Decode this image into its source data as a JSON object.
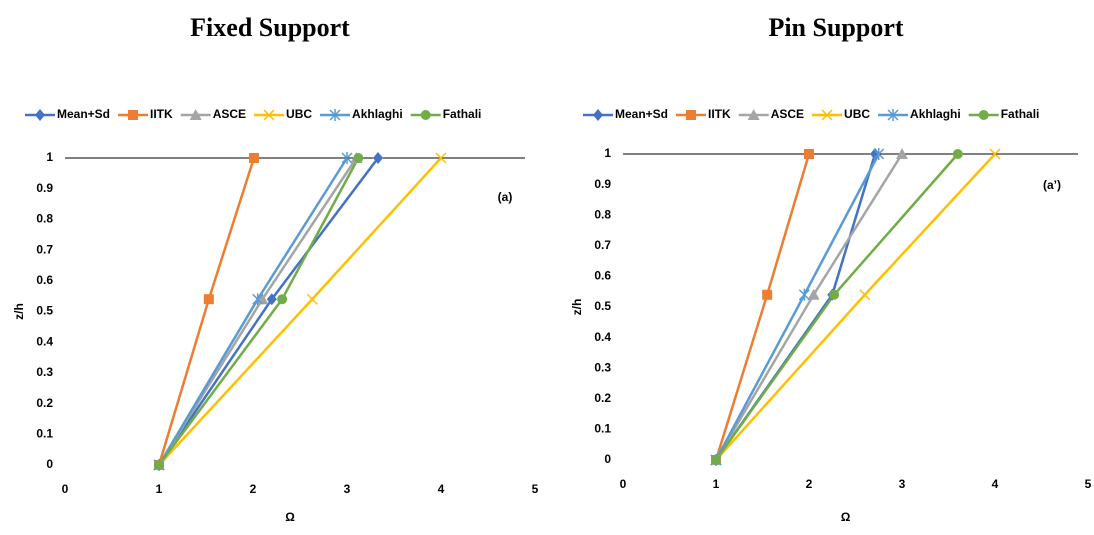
{
  "chart_data": [
    {
      "type": "line",
      "title": "Fixed Support",
      "annotation": "(a)",
      "x_label": "Ω",
      "y_label": "z/h",
      "xlim": [
        0,
        5
      ],
      "xticks": [
        0,
        1,
        2,
        3,
        4,
        5
      ],
      "ylim": [
        0,
        1
      ],
      "yticks": [
        0,
        0.1,
        0.2,
        0.3,
        0.4,
        0.5,
        0.6,
        0.7,
        0.8,
        0.9,
        1
      ],
      "legend": "top",
      "grid": false,
      "series": [
        {
          "name": "Mean+Sd",
          "color": "#4472c4",
          "marker": "diamond",
          "x": [
            1,
            2.2,
            3.33
          ],
          "values": [
            0,
            0.54,
            1
          ]
        },
        {
          "name": "IITK",
          "color": "#ed7d31",
          "marker": "square",
          "x": [
            1,
            1.53,
            2.01
          ],
          "values": [
            0,
            0.54,
            1
          ]
        },
        {
          "name": "ASCE",
          "color": "#a5a5a5",
          "marker": "triangle",
          "x": [
            1,
            2.1,
            3.1
          ],
          "values": [
            0,
            0.54,
            1
          ]
        },
        {
          "name": "UBC",
          "color": "#ffc000",
          "marker": "x",
          "x": [
            1,
            2.63,
            4.0
          ],
          "values": [
            0,
            0.54,
            1
          ]
        },
        {
          "name": "Akhlaghi",
          "color": "#5b9bd5",
          "marker": "asterisk",
          "x": [
            1,
            2.05,
            3.0
          ],
          "values": [
            0,
            0.54,
            1
          ]
        },
        {
          "name": "Fathali",
          "color": "#70ad47",
          "marker": "circle",
          "x": [
            1,
            2.31,
            3.12
          ],
          "values": [
            0,
            0.54,
            1
          ]
        }
      ]
    },
    {
      "type": "line",
      "title": "Pin Support",
      "annotation": "(a’)",
      "x_label": "Ω",
      "y_label": "z/h",
      "xlim": [
        0,
        5
      ],
      "xticks": [
        0,
        1,
        2,
        3,
        4,
        5
      ],
      "ylim": [
        0,
        1
      ],
      "yticks": [
        0,
        0.1,
        0.2,
        0.3,
        0.4,
        0.5,
        0.6,
        0.7,
        0.8,
        0.9,
        1
      ],
      "legend": "top",
      "grid": false,
      "series": [
        {
          "name": "Mean+Sd",
          "color": "#4472c4",
          "marker": "diamond",
          "x": [
            1,
            2.25,
            2.71
          ],
          "values": [
            0,
            0.54,
            1
          ]
        },
        {
          "name": "IITK",
          "color": "#ed7d31",
          "marker": "square",
          "x": [
            1,
            1.55,
            2.0
          ],
          "values": [
            0,
            0.54,
            1
          ]
        },
        {
          "name": "ASCE",
          "color": "#a5a5a5",
          "marker": "triangle",
          "x": [
            1,
            2.05,
            3.0
          ],
          "values": [
            0,
            0.54,
            1
          ]
        },
        {
          "name": "UBC",
          "color": "#ffc000",
          "marker": "x",
          "x": [
            1,
            2.6,
            4.0
          ],
          "values": [
            0,
            0.54,
            1
          ]
        },
        {
          "name": "Akhlaghi",
          "color": "#5b9bd5",
          "marker": "asterisk",
          "x": [
            1,
            1.95,
            2.75
          ],
          "values": [
            0,
            0.54,
            1
          ]
        },
        {
          "name": "Fathali",
          "color": "#70ad47",
          "marker": "circle",
          "x": [
            1,
            2.27,
            3.6
          ],
          "values": [
            0,
            0.54,
            1
          ]
        }
      ]
    }
  ]
}
